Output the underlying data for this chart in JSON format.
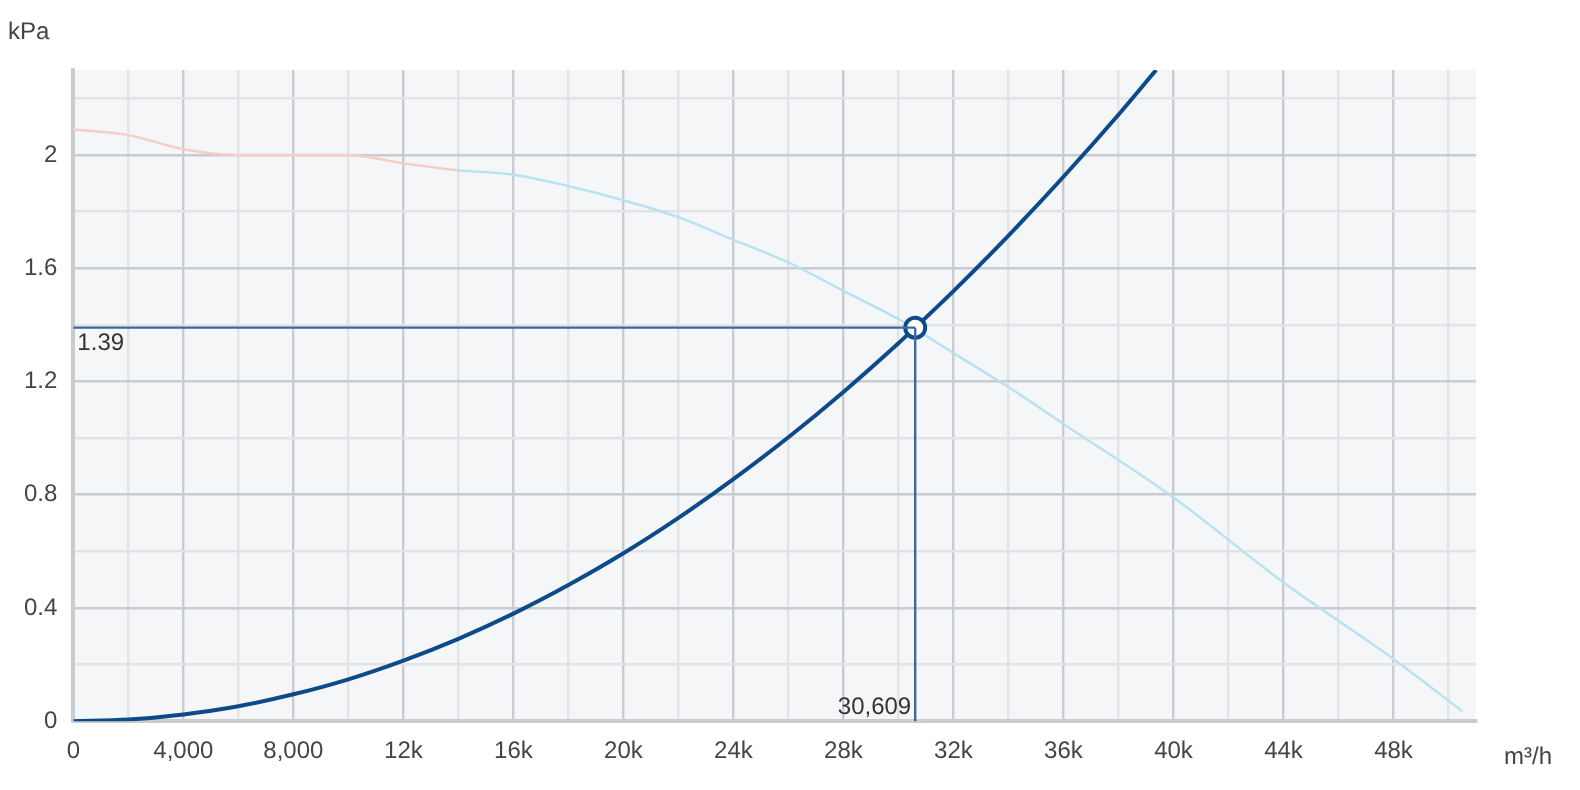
{
  "chart_data": {
    "type": "line",
    "xlabel": "m³/h",
    "ylabel": "kPa",
    "xlim": [
      0,
      51000
    ],
    "ylim": [
      0,
      2.3
    ],
    "xticks": [
      0,
      {
        "value": 2000,
        "label": null
      },
      {
        "value": 4000,
        "label": "4,000"
      },
      {
        "value": 6000,
        "label": null
      },
      {
        "value": 8000,
        "label": "8,000"
      },
      {
        "value": 10000,
        "label": null
      },
      {
        "value": 12000,
        "label": "12k"
      },
      {
        "value": 14000,
        "label": null
      },
      {
        "value": 16000,
        "label": "16k"
      },
      {
        "value": 18000,
        "label": null
      },
      {
        "value": 20000,
        "label": "20k"
      },
      {
        "value": 22000,
        "label": null
      },
      {
        "value": 24000,
        "label": "24k"
      },
      {
        "value": 26000,
        "label": null
      },
      {
        "value": 28000,
        "label": "28k"
      },
      {
        "value": 30000,
        "label": null
      },
      {
        "value": 32000,
        "label": "32k"
      },
      {
        "value": 34000,
        "label": null
      },
      {
        "value": 36000,
        "label": "36k"
      },
      {
        "value": 38000,
        "label": null
      },
      {
        "value": 40000,
        "label": "40k"
      },
      {
        "value": 42000,
        "label": null
      },
      {
        "value": 44000,
        "label": "44k"
      },
      {
        "value": 46000,
        "label": null
      },
      {
        "value": 48000,
        "label": "48k"
      },
      {
        "value": 50000,
        "label": null
      }
    ],
    "yticks": [
      0,
      {
        "value": 0.2,
        "label": null
      },
      0.4,
      {
        "value": 0.6,
        "label": null
      },
      0.8,
      {
        "value": 1.0,
        "label": null
      },
      1.2,
      {
        "value": 1.4,
        "label": null
      },
      1.6,
      {
        "value": 1.8,
        "label": null
      },
      2,
      {
        "value": 2.2,
        "label": null
      }
    ],
    "grid": true,
    "legend": false,
    "marker": "none",
    "line_style": "solid",
    "series": [
      {
        "color": "#f5cfc6",
        "x": [
          0,
          2000,
          4000,
          6000,
          8000,
          10000,
          12000,
          14000
        ],
        "values": [
          2.09,
          2.07,
          2.02,
          2.0,
          2.0,
          2.0,
          1.97,
          1.945
        ]
      },
      {
        "color": "#b8e2f2",
        "x": [
          14000,
          16000,
          18000,
          20000,
          22000,
          24000,
          26000,
          28000,
          30000,
          32000,
          34000,
          36000,
          40000,
          44000,
          48000,
          50500
        ],
        "values": [
          1.945,
          1.93,
          1.89,
          1.84,
          1.78,
          1.7,
          1.62,
          1.52,
          1.42,
          1.3,
          1.18,
          1.05,
          0.79,
          0.49,
          0.22,
          0.035
        ]
      },
      {
        "color": "#0d4a8a",
        "x": [
          0,
          2000,
          4000,
          6000,
          8000,
          10000,
          12000,
          14000,
          16000,
          18000,
          20000,
          22000,
          24000,
          26000,
          28000,
          30000,
          30609,
          32000,
          34000,
          36000,
          38000,
          39370
        ],
        "values": [
          0,
          0.006,
          0.024,
          0.053,
          0.095,
          0.148,
          0.214,
          0.291,
          0.38,
          0.481,
          0.593,
          0.718,
          0.855,
          1.003,
          1.163,
          1.335,
          1.39,
          1.519,
          1.715,
          1.923,
          2.142,
          2.3
        ]
      },
      {
        "type": "scatter",
        "marker": "circle",
        "color": "#0d4a8a",
        "x": [
          30609
        ],
        "values": [
          1.39
        ]
      }
    ],
    "ref_lines": [
      {
        "axis": "y",
        "value": 1.39,
        "label": "1.39",
        "color": "#3d6a9e"
      },
      {
        "axis": "x",
        "value": 30609,
        "label": "30,609",
        "color": "#3d6a9e"
      }
    ]
  }
}
